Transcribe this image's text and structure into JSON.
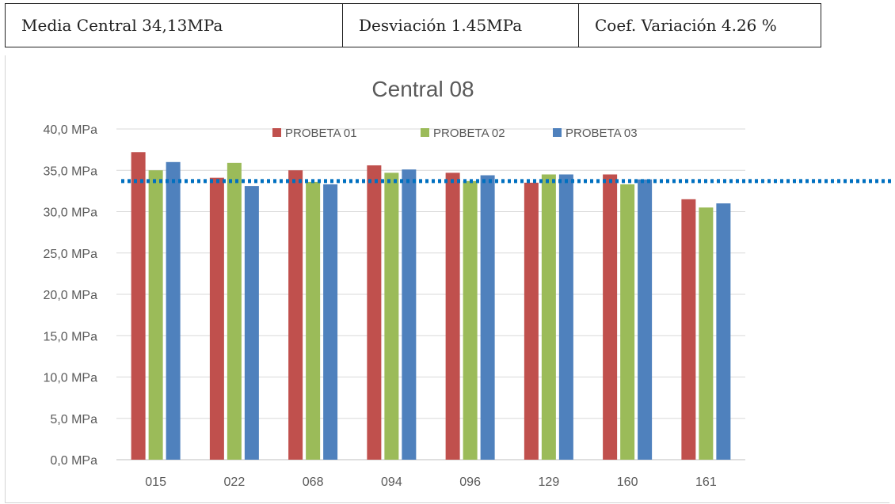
{
  "stats": {
    "mean": "Media Central 34,13MPa",
    "deviation": "Desviación 1.45MPa",
    "cv": "Coef. Variación 4.26 %"
  },
  "colors": {
    "probeta_01": "#c0504d",
    "probeta_02": "#9bbb59",
    "probeta_03": "#4f81bd",
    "mean_line": "#0070c0",
    "grid": "#d9d9d9"
  },
  "chart_data": {
    "type": "bar",
    "title": "Central 08",
    "xlabel": "",
    "ylabel": "",
    "categories": [
      "015",
      "022",
      "068",
      "094",
      "096",
      "129",
      "160",
      "161"
    ],
    "series": [
      {
        "name": "PROBETA 01",
        "values": [
          37.2,
          34.1,
          35.0,
          35.6,
          34.7,
          33.5,
          34.5,
          31.5
        ]
      },
      {
        "name": "PROBETA 02",
        "values": [
          35.0,
          35.9,
          33.6,
          34.7,
          33.7,
          34.5,
          33.3,
          30.5
        ]
      },
      {
        "name": "PROBETA 03",
        "values": [
          36.0,
          33.1,
          33.3,
          35.1,
          34.4,
          34.5,
          33.9,
          31.0
        ]
      }
    ],
    "ylim": [
      0,
      40
    ],
    "yticks": [
      "0,0 MPa",
      "5,0 MPa",
      "10,0 MPa",
      "15,0 MPa",
      "20,0 MPa",
      "25,0 MPa",
      "30,0 MPa",
      "35,0 MPa",
      "40,0 MPa"
    ],
    "reference_line": {
      "value": 33.7,
      "style": "dotted"
    },
    "grid": true,
    "legend": "top"
  }
}
